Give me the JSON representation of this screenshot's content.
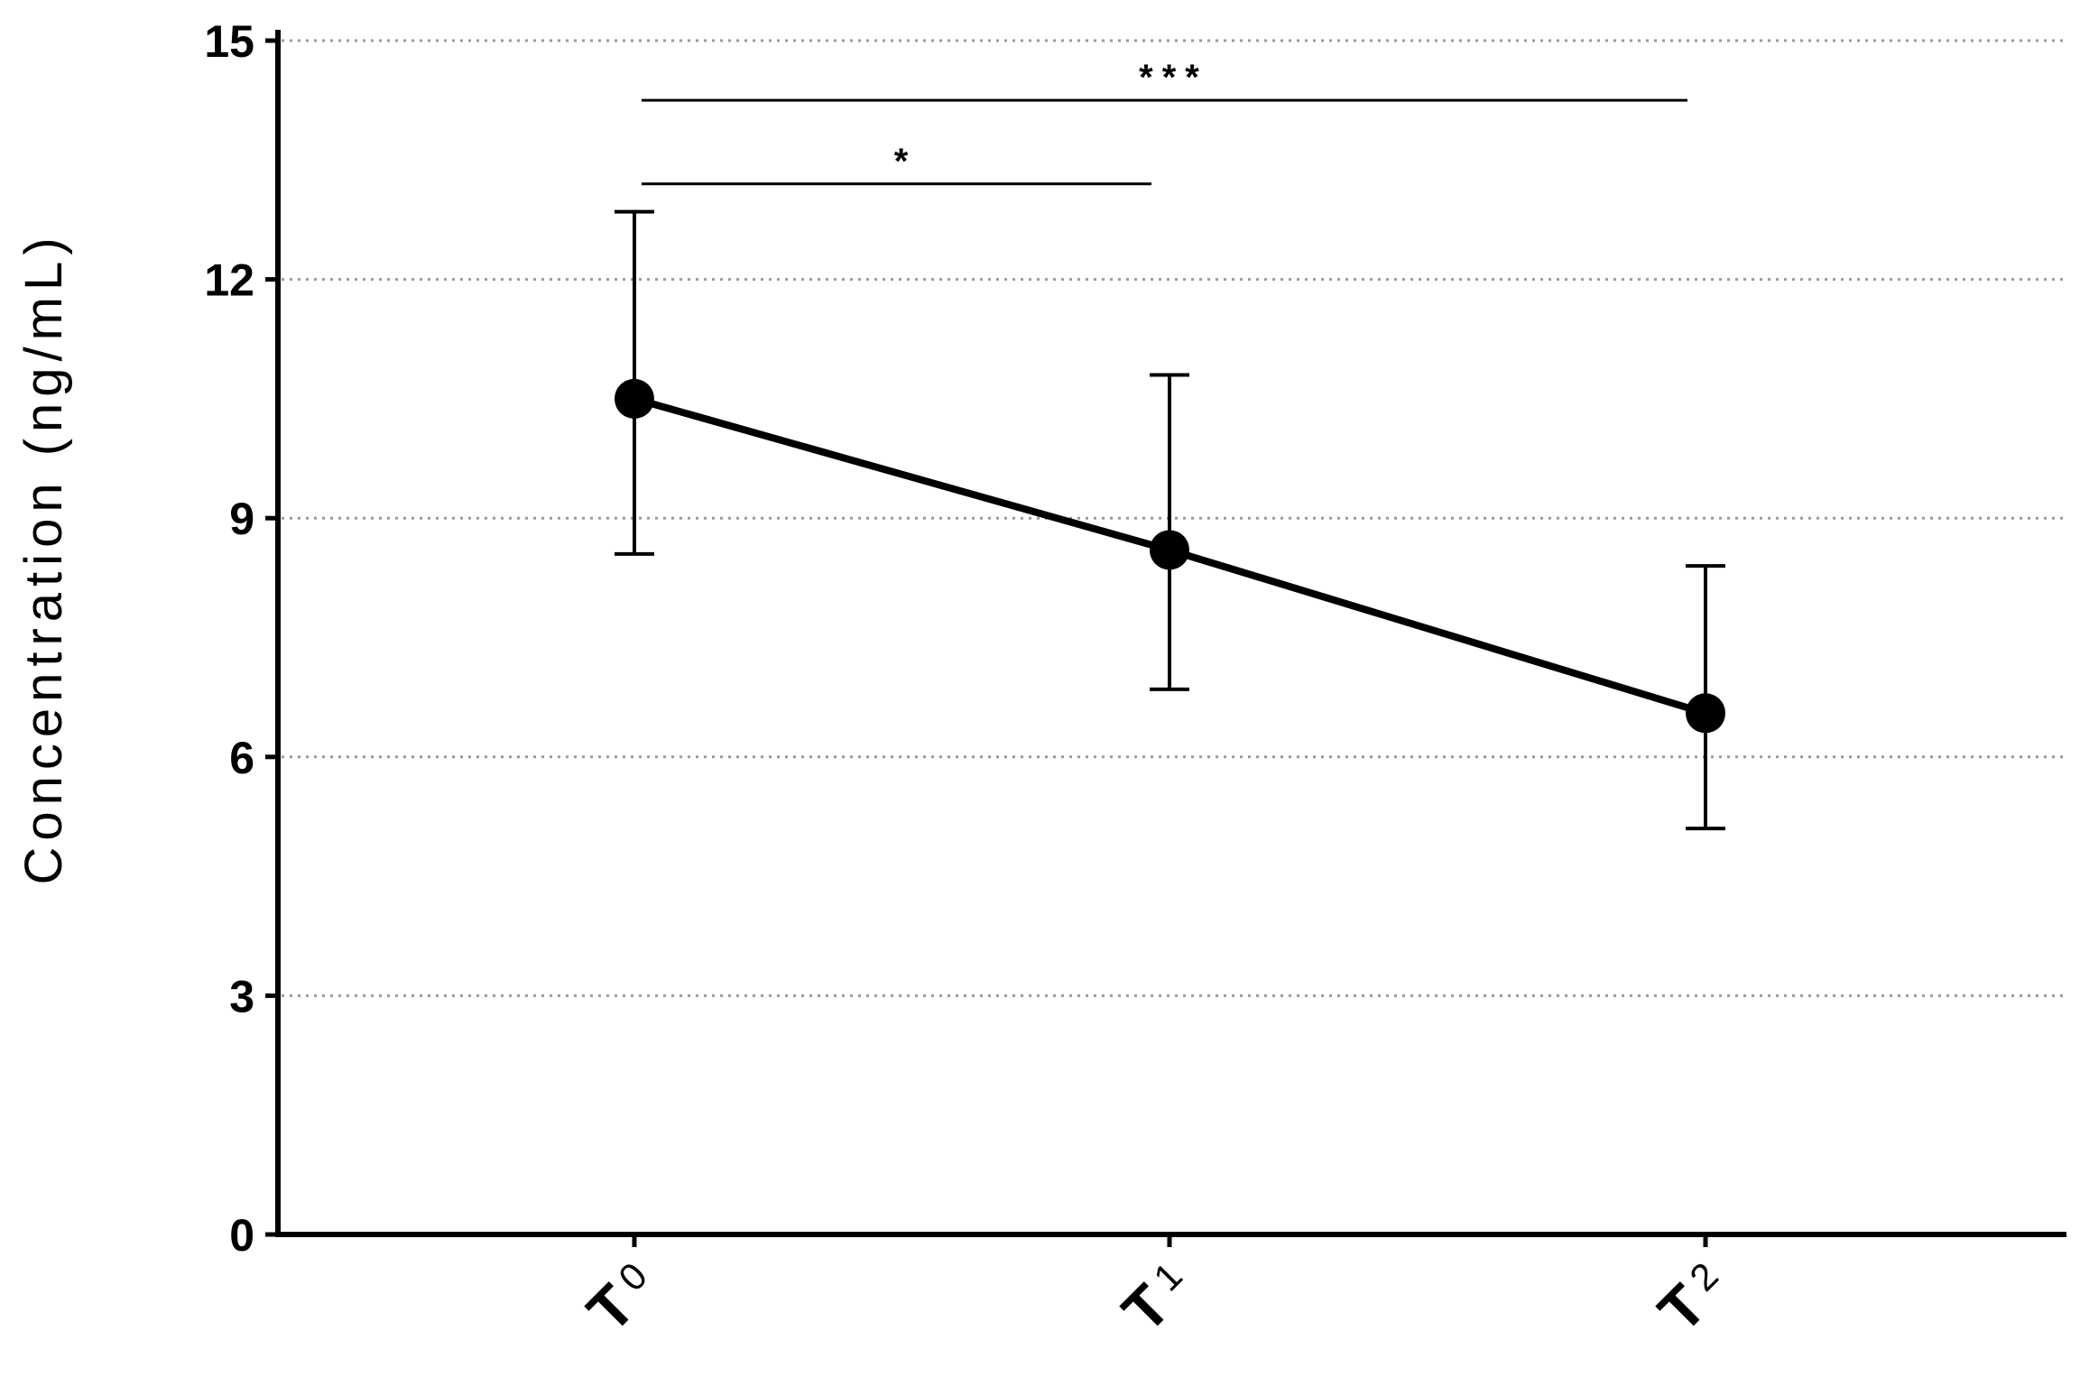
{
  "chart_data": {
    "type": "line",
    "title": "",
    "xlabel": "",
    "ylabel": "Concentration (ng/mL)",
    "ylim": [
      0,
      15
    ],
    "yticks": [
      "0",
      "3",
      "6",
      "9",
      "12",
      "15"
    ],
    "grid": "horizontal dotted",
    "categories": [
      {
        "main": "T",
        "sub": "0"
      },
      {
        "main": "T",
        "sub": "1"
      },
      {
        "main": "T",
        "sub": "2"
      }
    ],
    "series": [
      {
        "values": [
          10.5,
          8.6,
          6.55
        ],
        "error_upper": [
          12.85,
          10.8,
          8.4
        ],
        "error_lower": [
          8.55,
          6.85,
          5.1
        ]
      }
    ],
    "annotations": [
      {
        "from": 0,
        "to": 1,
        "y": 13.2,
        "label": "*"
      },
      {
        "from": 0,
        "to": 2,
        "y": 14.25,
        "label": "***"
      }
    ],
    "colors": {
      "line": "#000000",
      "grid": "#9a9a9a"
    }
  }
}
